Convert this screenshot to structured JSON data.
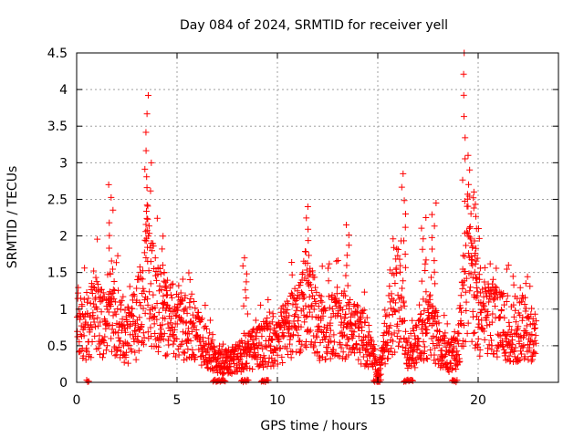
{
  "chart_data": {
    "type": "scatter",
    "title": "Day 084 of 2024, SRMTID for receiver yell",
    "xlabel": "GPS time / hours",
    "ylabel": "SRMTID / TECUs",
    "xlim": [
      0,
      24
    ],
    "ylim": [
      0,
      4.5
    ],
    "xticks": [
      "0",
      "5",
      "10",
      "15",
      "20"
    ],
    "yticks": [
      "0",
      "0.5",
      "1",
      "1.5",
      "2",
      "2.5",
      "3",
      "3.5",
      "4",
      "4.5"
    ],
    "grid": true,
    "marker": "plus",
    "color": "#ff0000",
    "series": [
      {
        "name": "SRMTID",
        "profile_note": "values dense scatter; baseline level by hour",
        "baseline": [
          [
            0.0,
            0.9
          ],
          [
            0.5,
            0.8
          ],
          [
            1.0,
            1.0
          ],
          [
            1.5,
            0.8
          ],
          [
            2.0,
            0.9
          ],
          [
            2.5,
            0.7
          ],
          [
            3.0,
            0.9
          ],
          [
            3.5,
            1.5
          ],
          [
            4.0,
            1.2
          ],
          [
            4.5,
            0.9
          ],
          [
            5.0,
            0.9
          ],
          [
            5.5,
            0.8
          ],
          [
            6.0,
            0.7
          ],
          [
            6.5,
            0.5
          ],
          [
            7.0,
            0.3
          ],
          [
            7.5,
            0.3
          ],
          [
            8.0,
            0.35
          ],
          [
            8.5,
            0.5
          ],
          [
            9.0,
            0.5
          ],
          [
            9.5,
            0.6
          ],
          [
            10.0,
            0.6
          ],
          [
            10.5,
            0.8
          ],
          [
            11.0,
            0.9
          ],
          [
            11.5,
            1.3
          ],
          [
            12.0,
            0.8
          ],
          [
            12.5,
            0.8
          ],
          [
            13.0,
            0.9
          ],
          [
            13.5,
            0.8
          ],
          [
            14.0,
            0.7
          ],
          [
            14.5,
            0.6
          ],
          [
            15.0,
            0.1
          ],
          [
            15.5,
            0.8
          ],
          [
            16.0,
            1.3
          ],
          [
            16.5,
            0.4
          ],
          [
            17.0,
            0.6
          ],
          [
            17.5,
            0.9
          ],
          [
            18.0,
            0.6
          ],
          [
            18.5,
            0.4
          ],
          [
            19.0,
            0.5
          ],
          [
            19.5,
            1.8
          ],
          [
            20.0,
            1.0
          ],
          [
            20.5,
            0.9
          ],
          [
            21.0,
            0.9
          ],
          [
            21.5,
            0.8
          ],
          [
            22.0,
            0.8
          ],
          [
            22.5,
            0.8
          ],
          [
            22.9,
            0.6
          ]
        ],
        "peaks": [
          [
            1.7,
            2.7
          ],
          [
            3.45,
            3.92
          ],
          [
            3.6,
            3.0
          ],
          [
            4.4,
            1.6
          ],
          [
            8.4,
            1.7
          ],
          [
            11.5,
            2.4
          ],
          [
            13.5,
            2.15
          ],
          [
            16.3,
            2.85
          ],
          [
            17.3,
            2.25
          ],
          [
            17.8,
            2.45
          ],
          [
            19.35,
            4.5
          ],
          [
            19.55,
            3.1
          ],
          [
            19.8,
            2.6
          ],
          [
            20.0,
            2.1
          ]
        ],
        "zero_gaps": [
          [
            0.5,
            0.65
          ],
          [
            6.8,
            7.4
          ],
          [
            8.2,
            8.6
          ],
          [
            9.2,
            9.6
          ],
          [
            14.8,
            15.2
          ],
          [
            16.3,
            16.8
          ],
          [
            18.7,
            19.0
          ]
        ]
      }
    ]
  }
}
